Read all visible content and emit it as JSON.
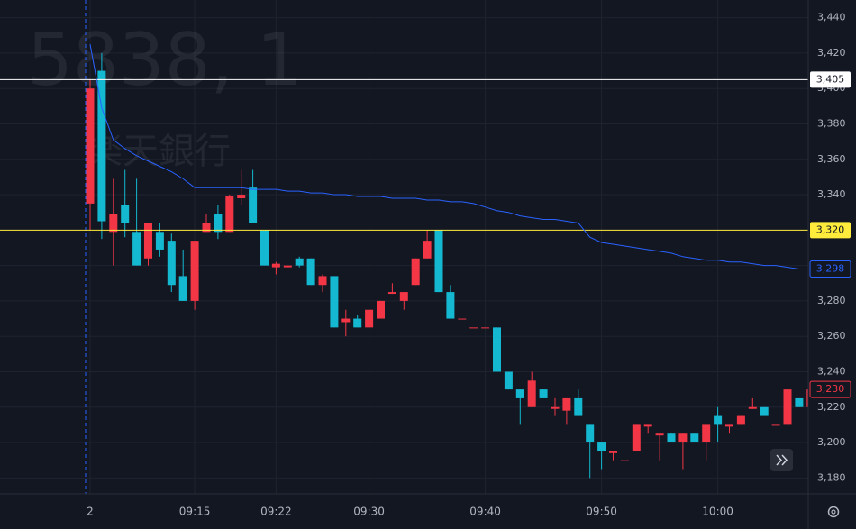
{
  "chart_data": {
    "type": "candlestick",
    "watermark": [
      "5838, 1",
      "楽天銀行"
    ],
    "categories": [
      "2",
      null,
      null,
      null,
      null,
      null,
      null,
      null,
      null,
      "09:15",
      null,
      null,
      null,
      null,
      null,
      null,
      "09:22",
      null,
      null,
      null,
      null,
      null,
      null,
      null,
      "09:30",
      null,
      null,
      null,
      null,
      null,
      null,
      null,
      null,
      null,
      "09:40",
      null,
      null,
      null,
      null,
      null,
      null,
      null,
      null,
      null,
      "09:50",
      null,
      null,
      null,
      null,
      null,
      null,
      null,
      null,
      null,
      "10:00",
      null,
      null,
      null,
      null,
      null,
      null,
      null,
      null
    ],
    "open": [
      3335,
      3410,
      3319,
      3334,
      3319,
      3304,
      3319,
      3314,
      3294,
      3280,
      3319,
      3329,
      3319,
      3338,
      3344,
      3320,
      3299,
      3299,
      3304,
      3304,
      3289,
      3294,
      3268,
      3270,
      3265,
      3270,
      3284,
      3280,
      3289,
      3304,
      3320,
      3285,
      3270,
      3265,
      3265,
      3265,
      3240,
      3230,
      3220,
      3230,
      3219,
      3218,
      3225,
      3210,
      3200,
      3194,
      3190,
      3195,
      3209,
      3204,
      3205,
      3200,
      3205,
      3200,
      3215,
      3209,
      3210,
      3219,
      3220,
      3210,
      3210,
      3225,
      3220
    ],
    "high": [
      3405,
      3420,
      3349,
      3354,
      3349,
      3324,
      3324,
      3318,
      3309,
      3314,
      3329,
      3334,
      3340,
      3354,
      3354,
      3320,
      3302,
      3300,
      3305,
      3304,
      3295,
      3294,
      3275,
      3272,
      3275,
      3280,
      3290,
      3285,
      3304,
      3320,
      3320,
      3289,
      3270,
      3265,
      3265,
      3265,
      3240,
      3230,
      3240,
      3230,
      3225,
      3225,
      3230,
      3210,
      3200,
      3195,
      3190,
      3210,
      3210,
      3205,
      3205,
      3205,
      3205,
      3210,
      3220,
      3210,
      3215,
      3225,
      3220,
      3210,
      3230,
      3225,
      3232
    ],
    "low": [
      3320,
      3315,
      3300,
      3316,
      3300,
      3300,
      3305,
      3285,
      3280,
      3275,
      3319,
      3315,
      3319,
      3334,
      3324,
      3300,
      3295,
      3299,
      3299,
      3289,
      3285,
      3265,
      3260,
      3265,
      3265,
      3270,
      3284,
      3275,
      3289,
      3304,
      3285,
      3270,
      3270,
      3265,
      3265,
      3240,
      3230,
      3210,
      3220,
      3225,
      3215,
      3210,
      3215,
      3180,
      3185,
      3190,
      3190,
      3195,
      3205,
      3190,
      3200,
      3185,
      3200,
      3190,
      3200,
      3205,
      3210,
      3219,
      3215,
      3210,
      3210,
      3220,
      3220
    ],
    "close": [
      3400,
      3325,
      3329,
      3324,
      3300,
      3324,
      3309,
      3289,
      3280,
      3314,
      3324,
      3319,
      3339,
      3340,
      3324,
      3300,
      3301,
      3300,
      3300,
      3289,
      3294,
      3265,
      3270,
      3265,
      3275,
      3280,
      3285,
      3285,
      3304,
      3314,
      3285,
      3270,
      3270,
      3265,
      3265,
      3240,
      3230,
      3225,
      3235,
      3225,
      3220,
      3225,
      3215,
      3200,
      3195,
      3195,
      3190,
      3210,
      3210,
      3205,
      3200,
      3205,
      3200,
      3210,
      3210,
      3210,
      3215,
      3220,
      3215,
      3210,
      3230,
      3220,
      3230
    ],
    "up_color": "#f23645",
    "down_color": "#14b8d0",
    "vwap": {
      "color": "#2962ff",
      "label": "3,298",
      "values": [
        3425,
        3389,
        3371,
        3366,
        3362,
        3359,
        3356,
        3353,
        3349,
        3344,
        3344,
        3344,
        3344,
        3344,
        3343,
        3343,
        3343,
        3342,
        3342,
        3341,
        3341,
        3340,
        3340,
        3339,
        3339,
        3339,
        3338,
        3338,
        3338,
        3337,
        3337,
        3336,
        3336,
        3335,
        3333,
        3331,
        3330,
        3328,
        3327,
        3326,
        3326,
        3325,
        3324,
        3316,
        3313,
        3312,
        3311,
        3310,
        3309,
        3308,
        3307,
        3305,
        3304,
        3303,
        3303,
        3302,
        3302,
        3301,
        3300,
        3300,
        3299,
        3298,
        3298
      ]
    },
    "lines": [
      {
        "value": 3405,
        "label": "3,405",
        "color": "#ffffff"
      },
      {
        "value": 3320,
        "label": "3,320",
        "color": "#ffeb3b"
      }
    ],
    "last_price": {
      "value": 3230,
      "label": "3,230",
      "color": "#f23645"
    },
    "ylim": [
      3171,
      3450
    ],
    "yticks": [
      {
        "value": 3180,
        "label": "3,180"
      },
      {
        "value": 3200,
        "label": "3,200"
      },
      {
        "value": 3220,
        "label": "3,220"
      },
      {
        "value": 3240,
        "label": "3,240"
      },
      {
        "value": 3260,
        "label": "3,260"
      },
      {
        "value": 3280,
        "label": "3,280"
      },
      {
        "value": 3300,
        "label": "3,300"
      },
      {
        "value": 3320,
        "label": "3,320"
      },
      {
        "value": 3340,
        "label": "3,340"
      },
      {
        "value": 3360,
        "label": "3,360"
      },
      {
        "value": 3380,
        "label": "3,380"
      },
      {
        "value": 3400,
        "label": "3,400"
      },
      {
        "value": 3420,
        "label": "3,420"
      },
      {
        "value": 3440,
        "label": "3,440"
      }
    ],
    "grid": true
  }
}
